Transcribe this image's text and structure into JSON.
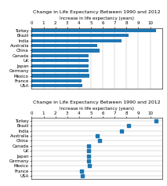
{
  "chart_data": [
    {
      "type": "bar",
      "orientation": "horizontal",
      "title": "Change in Life Expectancy Between 1990 and 2012",
      "x_label": "Increase in life expectancy (years)",
      "categories": [
        "Turkey",
        "Brazil",
        "India",
        "Australia",
        "China",
        "Canada",
        "UK",
        "Japan",
        "Germany",
        "Mexico",
        "France",
        "USA"
      ],
      "values": [
        10.5,
        8.2,
        7.6,
        5.5,
        5.7,
        4.8,
        4.8,
        4.8,
        4.8,
        4.9,
        4.2,
        4.3
      ],
      "xlim": [
        0,
        11
      ],
      "xticks": [
        0,
        1,
        2,
        3,
        4,
        5,
        6,
        7,
        8,
        9,
        10
      ],
      "grid": "x"
    },
    {
      "type": "dot",
      "marker": "square",
      "title": "Change in Life Expectancy Between 1990 and 2012",
      "x_label": "Increase in life expectancy (years)",
      "categories": [
        "Turkey",
        "Brazil",
        "India",
        "Australia",
        "China",
        "Canada",
        "UK",
        "Japan",
        "Germany",
        "Mexico",
        "France",
        "USA"
      ],
      "values": [
        10.5,
        8.2,
        7.6,
        5.5,
        5.7,
        4.8,
        4.8,
        4.8,
        4.8,
        4.9,
        4.2,
        4.3
      ],
      "xlim": [
        0,
        11
      ],
      "xticks": [
        0,
        1,
        2,
        3,
        4,
        5,
        6,
        7,
        8,
        9,
        10
      ],
      "grid": "y"
    }
  ]
}
